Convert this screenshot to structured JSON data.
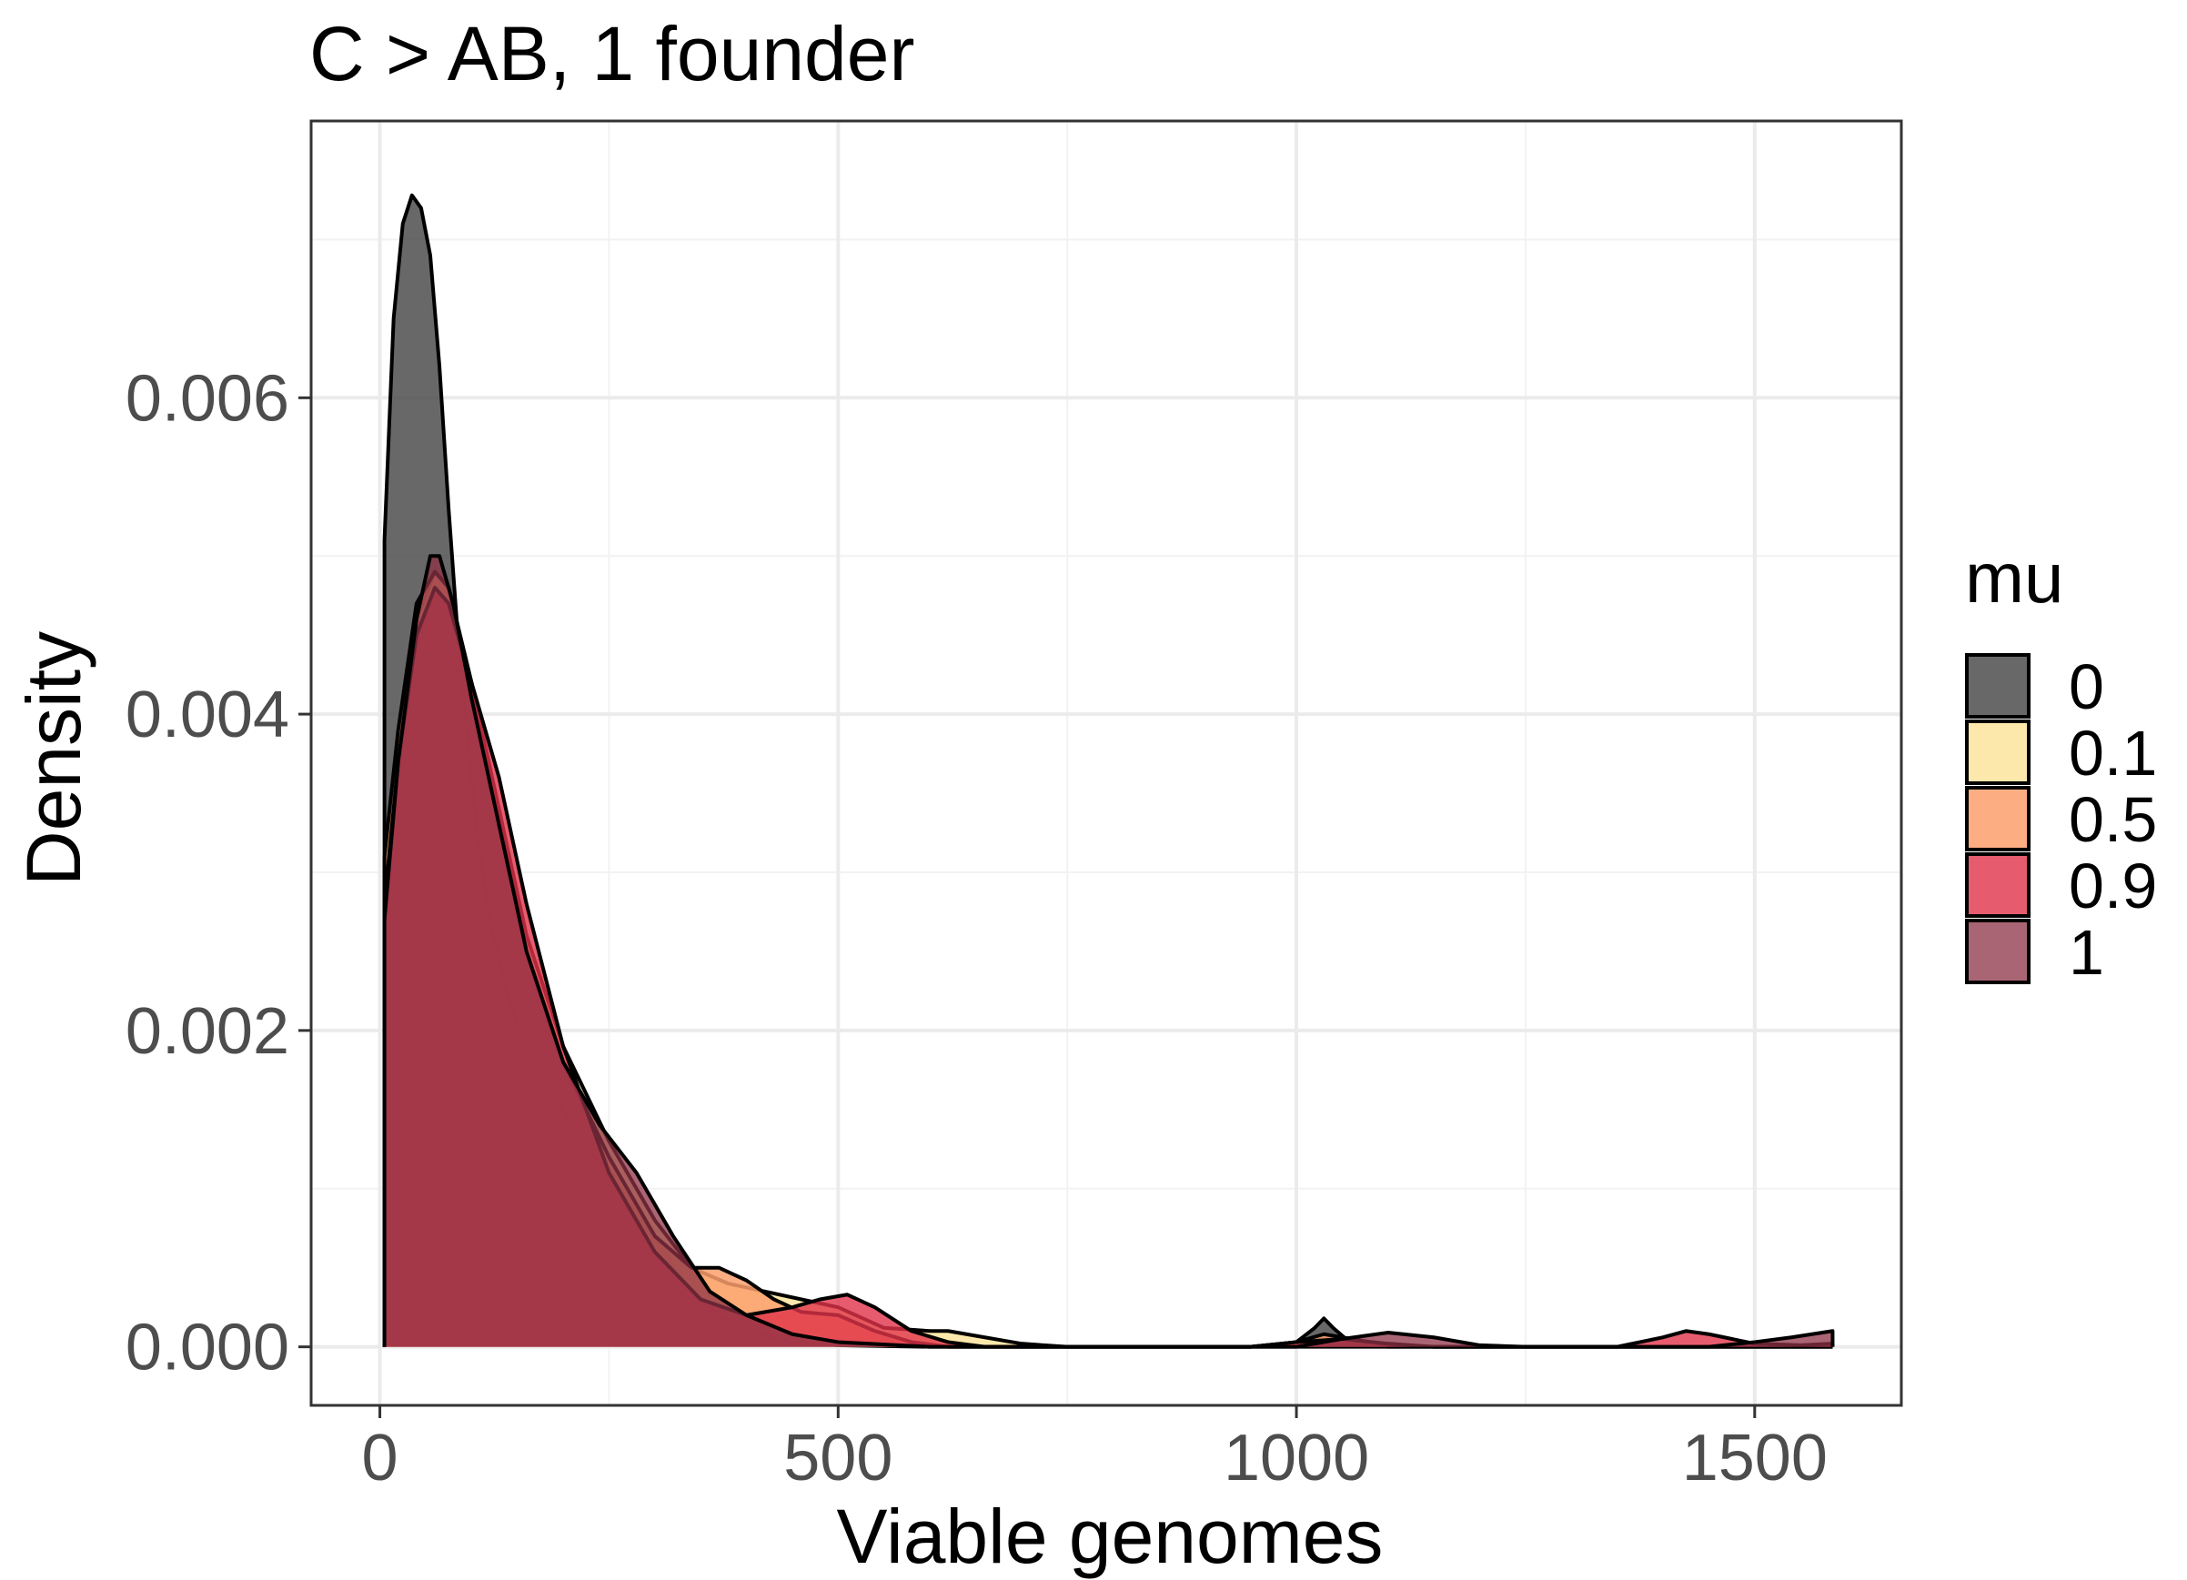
{
  "chart_data": {
    "type": "area",
    "title": "C > AB, 1 founder",
    "xlabel": "Viable genomes",
    "ylabel": "Density",
    "xlim": [
      -75,
      1660
    ],
    "ylim": [
      -0.00037,
      0.00775
    ],
    "x_ticks": [
      0,
      500,
      1000,
      1500
    ],
    "x_tick_labels": [
      "0",
      "500",
      "1000",
      "1500"
    ],
    "y_ticks": [
      0,
      0.002,
      0.004,
      0.006
    ],
    "y_tick_labels": [
      "0.000",
      "0.002",
      "0.004",
      "0.006"
    ],
    "grid": true,
    "legend": {
      "title": "mu",
      "placement": "right"
    },
    "series": [
      {
        "name": "0",
        "color": "#4d4d4d",
        "opacity": 0.85,
        "points": [
          [
            5,
            0.0051
          ],
          [
            15,
            0.0065
          ],
          [
            25,
            0.0071
          ],
          [
            35,
            0.00728
          ],
          [
            45,
            0.0072
          ],
          [
            55,
            0.0069
          ],
          [
            65,
            0.0062
          ],
          [
            75,
            0.0053
          ],
          [
            85,
            0.0045
          ],
          [
            95,
            0.0039
          ],
          [
            105,
            0.0033
          ],
          [
            120,
            0.0027
          ],
          [
            140,
            0.0022
          ],
          [
            160,
            0.0019
          ],
          [
            190,
            0.0016
          ],
          [
            220,
            0.0013
          ],
          [
            250,
            0.0011
          ],
          [
            280,
            0.00085
          ],
          [
            310,
            0.0006
          ],
          [
            340,
            0.00035
          ],
          [
            370,
            0.0002
          ],
          [
            400,
            0.0001
          ],
          [
            450,
            3e-05
          ],
          [
            500,
            1e-05
          ],
          [
            600,
            0.0
          ],
          [
            950,
            0.0
          ],
          [
            1000,
            3e-05
          ],
          [
            1020,
            0.00012
          ],
          [
            1030,
            0.00018
          ],
          [
            1040,
            0.00012
          ],
          [
            1060,
            2e-05
          ],
          [
            1100,
            0.0
          ],
          [
            1585,
            0.0
          ]
        ]
      },
      {
        "name": "0.1",
        "color": "#fde49e",
        "opacity": 0.85,
        "points": [
          [
            5,
            0.003
          ],
          [
            20,
            0.0038
          ],
          [
            40,
            0.0046
          ],
          [
            60,
            0.0049
          ],
          [
            75,
            0.0048
          ],
          [
            100,
            0.0042
          ],
          [
            130,
            0.0034
          ],
          [
            160,
            0.0026
          ],
          [
            200,
            0.0019
          ],
          [
            250,
            0.0013
          ],
          [
            300,
            0.0008
          ],
          [
            340,
            0.0005
          ],
          [
            380,
            0.0004
          ],
          [
            420,
            0.00035
          ],
          [
            460,
            0.0003
          ],
          [
            500,
            0.00025
          ],
          [
            550,
            0.00012
          ],
          [
            600,
            0.0001
          ],
          [
            620,
            0.0001
          ],
          [
            650,
            7e-05
          ],
          [
            700,
            2e-05
          ],
          [
            750,
            0.0
          ],
          [
            1585,
            0.0
          ]
        ]
      },
      {
        "name": "0.5",
        "color": "#fb9f6c",
        "opacity": 0.85,
        "points": [
          [
            5,
            0.0031
          ],
          [
            20,
            0.0039
          ],
          [
            40,
            0.0047
          ],
          [
            60,
            0.0049
          ],
          [
            75,
            0.0048
          ],
          [
            100,
            0.0042
          ],
          [
            130,
            0.0033
          ],
          [
            160,
            0.0025
          ],
          [
            200,
            0.0018
          ],
          [
            250,
            0.0012
          ],
          [
            300,
            0.0007
          ],
          [
            340,
            0.0005
          ],
          [
            370,
            0.0005
          ],
          [
            400,
            0.00042
          ],
          [
            430,
            0.0003
          ],
          [
            460,
            0.00022
          ],
          [
            500,
            0.0002
          ],
          [
            540,
            0.0001
          ],
          [
            580,
            3e-05
          ],
          [
            620,
            0.0
          ],
          [
            950,
            0.0
          ],
          [
            1000,
            3e-05
          ],
          [
            1030,
            8e-05
          ],
          [
            1060,
            5e-05
          ],
          [
            1100,
            1e-05
          ],
          [
            1150,
            0.0
          ],
          [
            1585,
            0.0
          ]
        ]
      },
      {
        "name": "0.9",
        "color": "#e0334a",
        "opacity": 0.8,
        "points": [
          [
            5,
            0.0028
          ],
          [
            20,
            0.0037
          ],
          [
            40,
            0.0045
          ],
          [
            60,
            0.0048
          ],
          [
            75,
            0.0047
          ],
          [
            100,
            0.0042
          ],
          [
            130,
            0.0036
          ],
          [
            160,
            0.0028
          ],
          [
            200,
            0.0019
          ],
          [
            250,
            0.0011
          ],
          [
            300,
            0.0006
          ],
          [
            350,
            0.0003
          ],
          [
            400,
            0.0002
          ],
          [
            450,
            0.00025
          ],
          [
            480,
            0.0003
          ],
          [
            510,
            0.00033
          ],
          [
            540,
            0.00025
          ],
          [
            580,
            0.0001
          ],
          [
            620,
            3e-05
          ],
          [
            660,
            0.0
          ],
          [
            950,
            0.0
          ],
          [
            1000,
            3e-05
          ],
          [
            1050,
            5e-05
          ],
          [
            1100,
            2e-05
          ],
          [
            1150,
            0.0
          ],
          [
            1350,
            0.0
          ],
          [
            1400,
            6e-05
          ],
          [
            1425,
            0.0001
          ],
          [
            1450,
            8e-05
          ],
          [
            1500,
            2e-05
          ],
          [
            1550,
            1e-05
          ],
          [
            1585,
            2e-05
          ]
        ]
      },
      {
        "name": "1",
        "color": "#8e3146",
        "opacity": 0.75,
        "points": [
          [
            5,
            0.0027
          ],
          [
            20,
            0.0037
          ],
          [
            40,
            0.0046
          ],
          [
            55,
            0.005
          ],
          [
            65,
            0.005
          ],
          [
            80,
            0.0047
          ],
          [
            100,
            0.0041
          ],
          [
            130,
            0.0033
          ],
          [
            160,
            0.0025
          ],
          [
            200,
            0.0018
          ],
          [
            240,
            0.0014
          ],
          [
            280,
            0.0011
          ],
          [
            320,
            0.0007
          ],
          [
            360,
            0.00035
          ],
          [
            400,
            0.0002
          ],
          [
            450,
            8e-05
          ],
          [
            500,
            3e-05
          ],
          [
            600,
            0.0
          ],
          [
            1000,
            0.0
          ],
          [
            1050,
            5e-05
          ],
          [
            1100,
            9e-05
          ],
          [
            1150,
            6e-05
          ],
          [
            1200,
            1e-05
          ],
          [
            1250,
            0.0
          ],
          [
            1450,
            0.0
          ],
          [
            1500,
            3e-05
          ],
          [
            1540,
            6e-05
          ],
          [
            1585,
            0.0001
          ]
        ]
      }
    ]
  }
}
